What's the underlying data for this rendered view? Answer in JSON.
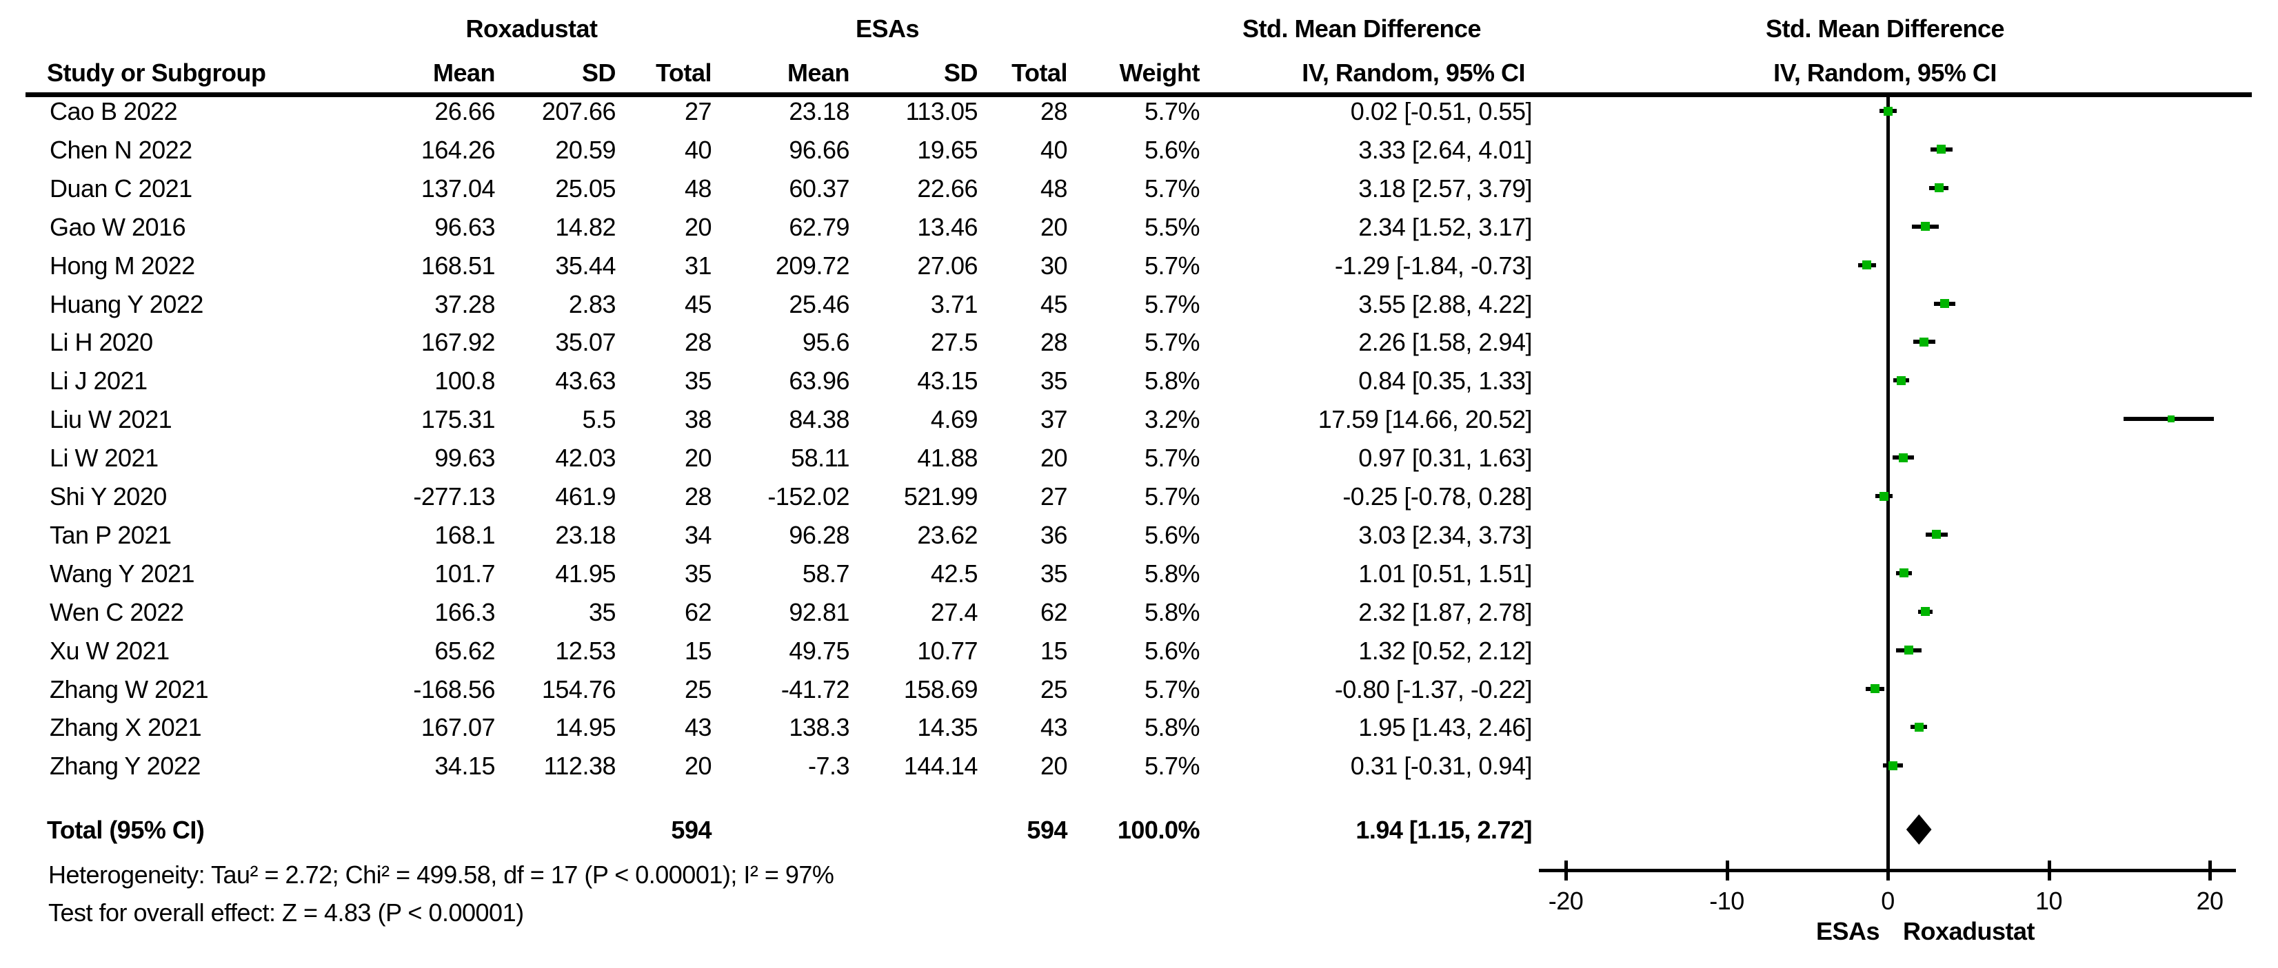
{
  "header": {
    "group1": "Roxadustat",
    "group2": "ESAs",
    "effect": "Std. Mean Difference",
    "effect_sub": "IV, Random, 95% CI",
    "plot_effect": "Std. Mean Difference",
    "plot_effect_sub": "IV, Random, 95% CI",
    "study": "Study or Subgroup",
    "mean1": "Mean",
    "sd1": "SD",
    "total1": "Total",
    "mean2": "Mean",
    "sd2": "SD",
    "total2": "Total",
    "weight": "Weight"
  },
  "chart_data": {
    "type": "forest",
    "effect_measure": "Std. Mean Difference",
    "model": "IV, Random, 95% CI",
    "colors": {
      "marker": "#00b400",
      "ink": "#000000"
    },
    "studies": [
      {
        "study": "Cao B 2022",
        "r_mean": "26.66",
        "r_sd": "207.66",
        "r_n": "27",
        "e_mean": "23.18",
        "e_sd": "113.05",
        "e_n": "28",
        "weight": "5.7%",
        "ci": "0.02 [-0.51, 0.55]",
        "est": 0.02,
        "lo": -0.51,
        "hi": 0.55,
        "w": 5.7
      },
      {
        "study": "Chen N 2022",
        "r_mean": "164.26",
        "r_sd": "20.59",
        "r_n": "40",
        "e_mean": "96.66",
        "e_sd": "19.65",
        "e_n": "40",
        "weight": "5.6%",
        "ci": "3.33 [2.64, 4.01]",
        "est": 3.33,
        "lo": 2.64,
        "hi": 4.01,
        "w": 5.6
      },
      {
        "study": "Duan C 2021",
        "r_mean": "137.04",
        "r_sd": "25.05",
        "r_n": "48",
        "e_mean": "60.37",
        "e_sd": "22.66",
        "e_n": "48",
        "weight": "5.7%",
        "ci": "3.18 [2.57, 3.79]",
        "est": 3.18,
        "lo": 2.57,
        "hi": 3.79,
        "w": 5.7
      },
      {
        "study": "Gao W 2016",
        "r_mean": "96.63",
        "r_sd": "14.82",
        "r_n": "20",
        "e_mean": "62.79",
        "e_sd": "13.46",
        "e_n": "20",
        "weight": "5.5%",
        "ci": "2.34 [1.52, 3.17]",
        "est": 2.34,
        "lo": 1.52,
        "hi": 3.17,
        "w": 5.5
      },
      {
        "study": "Hong M 2022",
        "r_mean": "168.51",
        "r_sd": "35.44",
        "r_n": "31",
        "e_mean": "209.72",
        "e_sd": "27.06",
        "e_n": "30",
        "weight": "5.7%",
        "ci": "-1.29 [-1.84, -0.73]",
        "est": -1.29,
        "lo": -1.84,
        "hi": -0.73,
        "w": 5.7
      },
      {
        "study": "Huang Y 2022",
        "r_mean": "37.28",
        "r_sd": "2.83",
        "r_n": "45",
        "e_mean": "25.46",
        "e_sd": "3.71",
        "e_n": "45",
        "weight": "5.7%",
        "ci": "3.55 [2.88, 4.22]",
        "est": 3.55,
        "lo": 2.88,
        "hi": 4.22,
        "w": 5.7
      },
      {
        "study": "Li H 2020",
        "r_mean": "167.92",
        "r_sd": "35.07",
        "r_n": "28",
        "e_mean": "95.6",
        "e_sd": "27.5",
        "e_n": "28",
        "weight": "5.7%",
        "ci": "2.26 [1.58, 2.94]",
        "est": 2.26,
        "lo": 1.58,
        "hi": 2.94,
        "w": 5.7
      },
      {
        "study": "Li J 2021",
        "r_mean": "100.8",
        "r_sd": "43.63",
        "r_n": "35",
        "e_mean": "63.96",
        "e_sd": "43.15",
        "e_n": "35",
        "weight": "5.8%",
        "ci": "0.84 [0.35, 1.33]",
        "est": 0.84,
        "lo": 0.35,
        "hi": 1.33,
        "w": 5.8
      },
      {
        "study": "Liu W 2021",
        "r_mean": "175.31",
        "r_sd": "5.5",
        "r_n": "38",
        "e_mean": "84.38",
        "e_sd": "4.69",
        "e_n": "37",
        "weight": "3.2%",
        "ci": "17.59 [14.66, 20.52]",
        "est": 17.59,
        "lo": 14.66,
        "hi": 20.52,
        "w": 3.2
      },
      {
        "study": "Li W 2021",
        "r_mean": "99.63",
        "r_sd": "42.03",
        "r_n": "20",
        "e_mean": "58.11",
        "e_sd": "41.88",
        "e_n": "20",
        "weight": "5.7%",
        "ci": "0.97 [0.31, 1.63]",
        "est": 0.97,
        "lo": 0.31,
        "hi": 1.63,
        "w": 5.7
      },
      {
        "study": "Shi Y 2020",
        "r_mean": "-277.13",
        "r_sd": "461.9",
        "r_n": "28",
        "e_mean": "-152.02",
        "e_sd": "521.99",
        "e_n": "27",
        "weight": "5.7%",
        "ci": "-0.25 [-0.78, 0.28]",
        "est": -0.25,
        "lo": -0.78,
        "hi": 0.28,
        "w": 5.7
      },
      {
        "study": "Tan P 2021",
        "r_mean": "168.1",
        "r_sd": "23.18",
        "r_n": "34",
        "e_mean": "96.28",
        "e_sd": "23.62",
        "e_n": "36",
        "weight": "5.6%",
        "ci": "3.03 [2.34, 3.73]",
        "est": 3.03,
        "lo": 2.34,
        "hi": 3.73,
        "w": 5.6
      },
      {
        "study": "Wang Y 2021",
        "r_mean": "101.7",
        "r_sd": "41.95",
        "r_n": "35",
        "e_mean": "58.7",
        "e_sd": "42.5",
        "e_n": "35",
        "weight": "5.8%",
        "ci": "1.01 [0.51, 1.51]",
        "est": 1.01,
        "lo": 0.51,
        "hi": 1.51,
        "w": 5.8
      },
      {
        "study": "Wen C 2022",
        "r_mean": "166.3",
        "r_sd": "35",
        "r_n": "62",
        "e_mean": "92.81",
        "e_sd": "27.4",
        "e_n": "62",
        "weight": "5.8%",
        "ci": "2.32 [1.87, 2.78]",
        "est": 2.32,
        "lo": 1.87,
        "hi": 2.78,
        "w": 5.8
      },
      {
        "study": "Xu W 2021",
        "r_mean": "65.62",
        "r_sd": "12.53",
        "r_n": "15",
        "e_mean": "49.75",
        "e_sd": "10.77",
        "e_n": "15",
        "weight": "5.6%",
        "ci": "1.32 [0.52, 2.12]",
        "est": 1.32,
        "lo": 0.52,
        "hi": 2.12,
        "w": 5.6
      },
      {
        "study": "Zhang W 2021",
        "r_mean": "-168.56",
        "r_sd": "154.76",
        "r_n": "25",
        "e_mean": "-41.72",
        "e_sd": "158.69",
        "e_n": "25",
        "weight": "5.7%",
        "ci": "-0.80 [-1.37, -0.22]",
        "est": -0.8,
        "lo": -1.37,
        "hi": -0.22,
        "w": 5.7
      },
      {
        "study": "Zhang X 2021",
        "r_mean": "167.07",
        "r_sd": "14.95",
        "r_n": "43",
        "e_mean": "138.3",
        "e_sd": "14.35",
        "e_n": "43",
        "weight": "5.8%",
        "ci": "1.95 [1.43, 2.46]",
        "est": 1.95,
        "lo": 1.43,
        "hi": 2.46,
        "w": 5.8
      },
      {
        "study": "Zhang Y 2022",
        "r_mean": "34.15",
        "r_sd": "112.38",
        "r_n": "20",
        "e_mean": "-7.3",
        "e_sd": "144.14",
        "e_n": "20",
        "weight": "5.7%",
        "ci": "0.31 [-0.31, 0.94]",
        "est": 0.31,
        "lo": -0.31,
        "hi": 0.94,
        "w": 5.7
      }
    ],
    "total": {
      "label": "Total (95% CI)",
      "r_n": "594",
      "e_n": "594",
      "weight": "100.0%",
      "ci": "1.94 [1.15, 2.72]",
      "est": 1.94,
      "lo": 1.15,
      "hi": 2.72
    },
    "footnotes": {
      "heterogeneity": "Heterogeneity: Tau² = 2.72; Chi² = 499.58, df = 17 (P < 0.00001); I² = 97%",
      "overall": "Test for overall effect: Z = 4.83 (P < 0.00001)"
    },
    "axis": {
      "xlim": [
        -20,
        20
      ],
      "tick_values": [
        -20,
        -10,
        0,
        10,
        20
      ],
      "tick_labels": [
        "-20",
        "-10",
        "0",
        "10",
        "20"
      ],
      "left_label": "ESAs",
      "right_label": "Roxadustat"
    }
  }
}
